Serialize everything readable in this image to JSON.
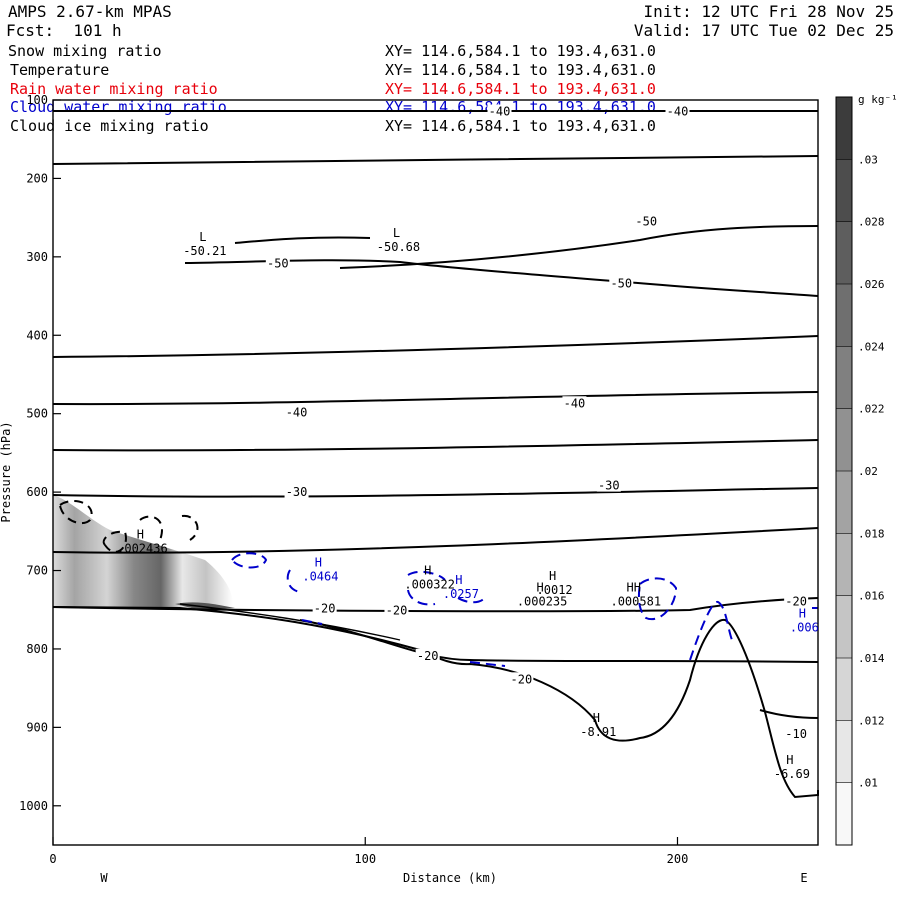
{
  "header": {
    "model": "AMPS 2.67-km MPAS",
    "forecast": "Fcst:  101 h",
    "init": "Init: 12 UTC Fri 28 Nov 25",
    "valid": "Valid: 17 UTC Tue 02 Dec 25"
  },
  "fields": [
    {
      "name": "Snow mixing ratio",
      "xy": "XY= 114.6,584.1 to 193.4,631.0",
      "color": "#000000"
    },
    {
      "name": "Temperature",
      "xy": "XY= 114.6,584.1 to 193.4,631.0",
      "color": "#000000"
    },
    {
      "name": "Rain water mixing ratio",
      "xy": "XY= 114.6,584.1 to 193.4,631.0",
      "color": "#e8000b"
    },
    {
      "name": "Cloud water mixing ratio",
      "xy": "XY= 114.6,584.1 to 193.4,631.0",
      "color": "#0000cc"
    },
    {
      "name": "Cloud ice mixing ratio",
      "xy": "XY= 114.6,584.1 to 193.4,631.0",
      "color": "#000000"
    }
  ],
  "chart_data": {
    "type": "cross-section contour",
    "xlabel": "Distance (km)",
    "ylabel": "Pressure (hPa)",
    "xlim": [
      0,
      245
    ],
    "ylim": [
      1050,
      100
    ],
    "x_ticks": [
      0,
      100,
      200
    ],
    "y_ticks": [
      100,
      200,
      300,
      400,
      500,
      600,
      700,
      800,
      900,
      1000
    ],
    "west_label": "W",
    "east_label": "E",
    "colorbar": {
      "unit": "g kg⁻¹",
      "levels": [
        ".01",
        ".012",
        ".014",
        ".016",
        ".018",
        ".02",
        ".022",
        ".024",
        ".026",
        ".028",
        ".03"
      ]
    },
    "temperature_labels": [
      {
        "x": 143,
        "p": 116,
        "text": "-40"
      },
      {
        "x": 200,
        "p": 116,
        "text": "-40"
      },
      {
        "x": 190,
        "p": 256,
        "text": "-50"
      },
      {
        "x": 182,
        "p": 335,
        "text": "-50"
      },
      {
        "x": 72,
        "p": 310,
        "text": "-50"
      },
      {
        "x": 78,
        "p": 500,
        "text": "-40"
      },
      {
        "x": 167,
        "p": 488,
        "text": "-40"
      },
      {
        "x": 78,
        "p": 601,
        "text": "-30"
      },
      {
        "x": 178,
        "p": 593,
        "text": "-30"
      },
      {
        "x": 87,
        "p": 750,
        "text": "-20"
      },
      {
        "x": 110,
        "p": 752,
        "text": "-20"
      },
      {
        "x": 120,
        "p": 810,
        "text": "-20"
      },
      {
        "x": 150,
        "p": 840,
        "text": "-20"
      },
      {
        "x": 238,
        "p": 741,
        "text": "-20"
      },
      {
        "x": 238,
        "p": 910,
        "text": "-10"
      }
    ],
    "extrema": [
      {
        "x": 48,
        "p": 280,
        "mark": "L",
        "value": "-50.21",
        "color": "#000000"
      },
      {
        "x": 110,
        "p": 275,
        "mark": "L",
        "value": "-50.68",
        "color": "#000000"
      },
      {
        "x": 28,
        "p": 659,
        "mark": "H",
        "value": ".002436",
        "color": "#000000"
      },
      {
        "x": 85,
        "p": 695,
        "mark": "H",
        "value": ".0464",
        "color": "#0000cc"
      },
      {
        "x": 120,
        "p": 705,
        "mark": "H",
        "value": ".000322",
        "color": "#000000"
      },
      {
        "x": 130,
        "p": 717,
        "mark": "H",
        "value": ".0257",
        "color": "#0000cc"
      },
      {
        "x": 160,
        "p": 712,
        "mark": "H",
        "value": ".0012",
        "color": "#000000"
      },
      {
        "x": 156,
        "p": 727,
        "mark": "H",
        "value": ".000235",
        "color": "#000000"
      },
      {
        "x": 186,
        "p": 727,
        "mark": "HH",
        "value": ".000581",
        "color": "#000000"
      },
      {
        "x": 174,
        "p": 893,
        "mark": "H",
        "value": "-8.91",
        "color": "#000000"
      },
      {
        "x": 236,
        "p": 947,
        "mark": "H",
        "value": "-6.69",
        "color": "#000000"
      },
      {
        "x": 240,
        "p": 760,
        "mark": "H",
        "value": ".006",
        "color": "#0000cc"
      }
    ]
  }
}
